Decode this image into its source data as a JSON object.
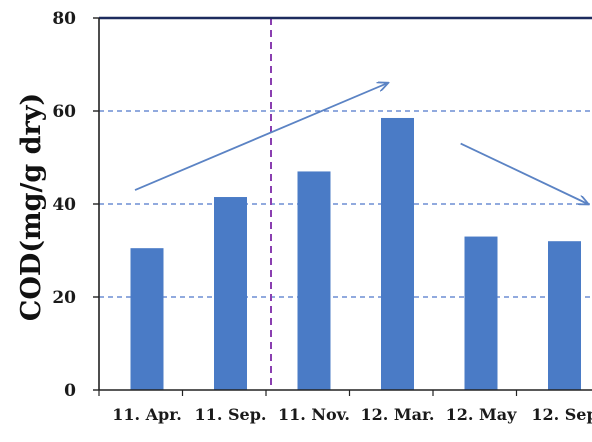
{
  "chart_data": {
    "type": "bar",
    "title": "",
    "xlabel": "",
    "ylabel": "COD(mg/g dry)",
    "categories": [
      "11. Apr.",
      "11. Sep.",
      "11. Nov.",
      "12. Mar.",
      "12. May",
      "12. Sep"
    ],
    "values": [
      30.5,
      41.5,
      47,
      58.5,
      33,
      32
    ],
    "ylim": [
      0,
      80
    ],
    "yticks": [
      "0",
      "20",
      "40",
      "60",
      "80"
    ],
    "grid": "horizontal dashed",
    "legend": "none",
    "colors": {
      "bar": "#4a7bc6",
      "grid": "#4f77c9",
      "divider": "#8a3fb0",
      "arrow": "#5b83c4",
      "axis": "#222222"
    },
    "annotations": {
      "divider_after_category": "11. Sep.",
      "arrows": [
        {
          "from": {
            "x_cat": 0,
            "y": 43
          },
          "to": {
            "x_cat": 3,
            "y": 66
          },
          "direction": "increase"
        },
        {
          "from": {
            "x_cat": 3.9,
            "y": 53
          },
          "to": {
            "x_cat": 5.4,
            "y": 40
          },
          "direction": "decrease"
        }
      ]
    }
  }
}
